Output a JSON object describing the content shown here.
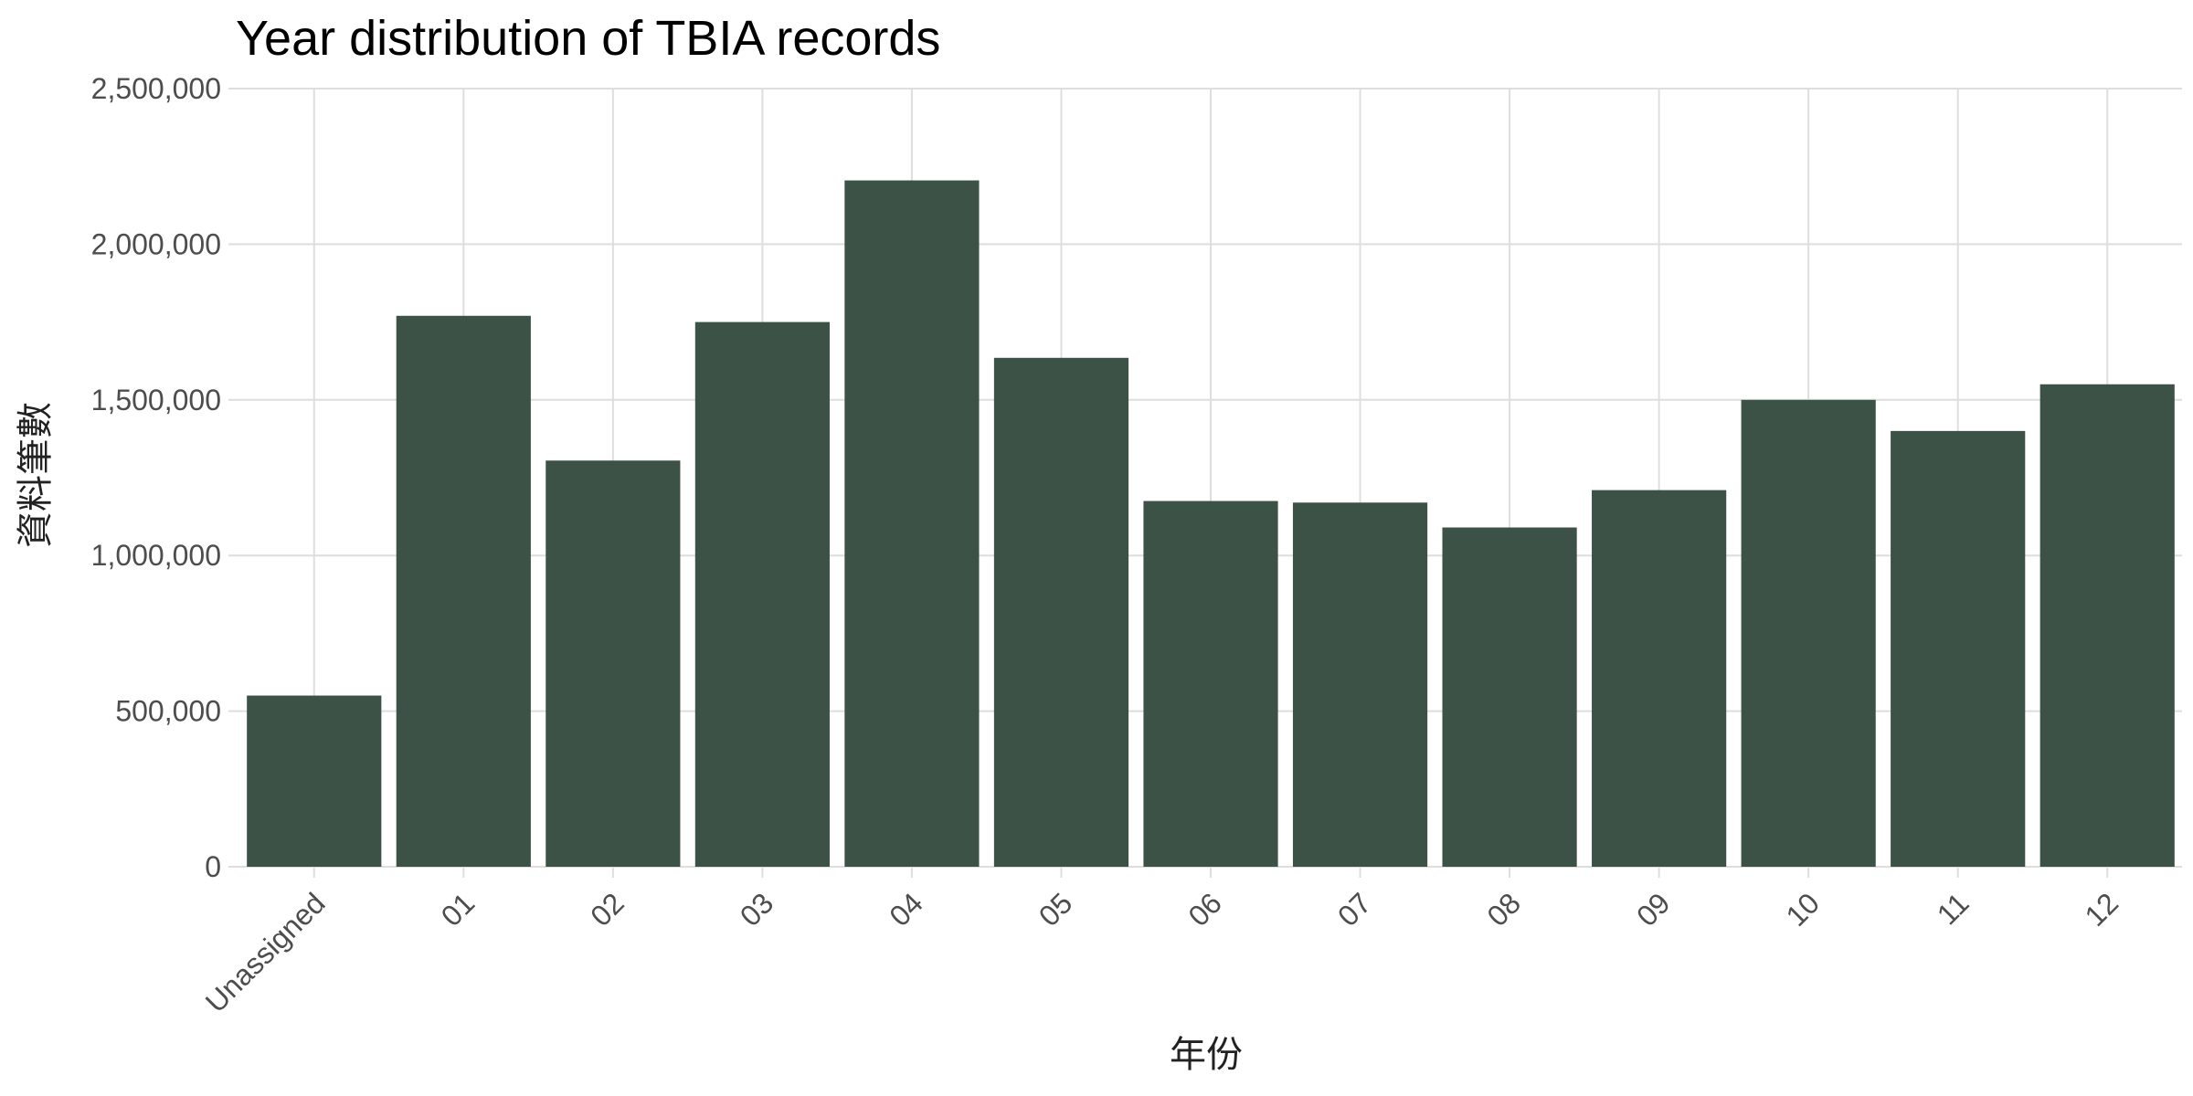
{
  "chart_data": {
    "type": "bar",
    "title": "Year distribution of TBIA records",
    "xlabel": "年份",
    "ylabel": "資料筆數",
    "categories": [
      "Unassigned",
      "01",
      "02",
      "03",
      "04",
      "05",
      "06",
      "07",
      "08",
      "09",
      "10",
      "11",
      "12"
    ],
    "values": [
      550000,
      1770000,
      1305000,
      1750000,
      2205000,
      1635000,
      1175000,
      1170000,
      1090000,
      1210000,
      1500000,
      1400000,
      1550000
    ],
    "ylim": [
      0,
      2500000
    ],
    "yticks": [
      0,
      500000,
      1000000,
      1500000,
      2000000,
      2500000
    ],
    "ytick_labels": [
      "0",
      "500,000",
      "1,000,000",
      "1,500,000",
      "2,000,000",
      "2,500,000"
    ],
    "bar_color": "#3d5246",
    "grid": true,
    "legend": "none"
  }
}
